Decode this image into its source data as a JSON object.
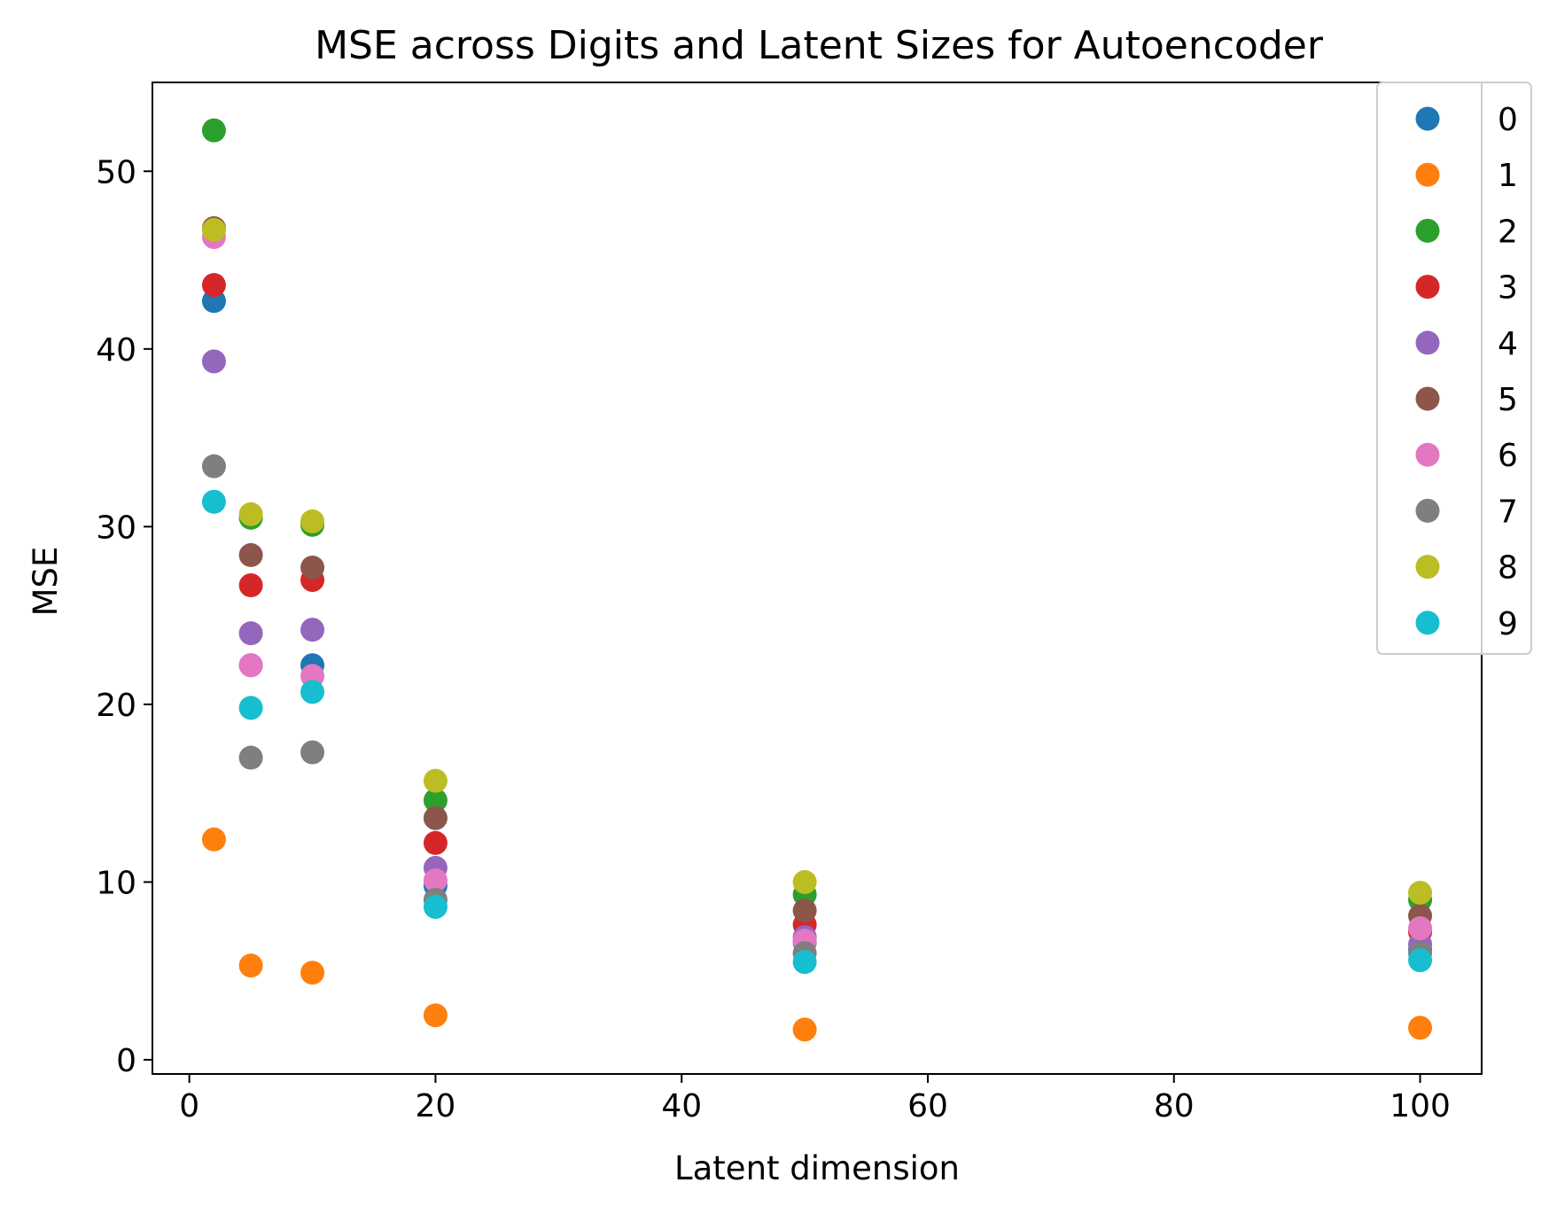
{
  "chart_data": {
    "type": "scatter",
    "title": "MSE across Digits and Latent Sizes for Autoencoder",
    "xlabel": "Latent dimension",
    "ylabel": "MSE",
    "xlim": [
      -3,
      105
    ],
    "ylim": [
      -0.8,
      55
    ],
    "xticks": [
      0,
      20,
      40,
      60,
      80,
      100
    ],
    "yticks": [
      0,
      10,
      20,
      30,
      40,
      50
    ],
    "grid": false,
    "legend_position": "upper-right",
    "x": [
      2,
      5,
      10,
      20,
      50,
      100
    ],
    "series": [
      {
        "name": "0",
        "color": "#1f77b4",
        "values": [
          42.7,
          22.2,
          22.2,
          9.8,
          6.6,
          6.2
        ]
      },
      {
        "name": "1",
        "color": "#ff7f0e",
        "values": [
          12.4,
          5.3,
          4.9,
          2.5,
          1.7,
          1.8
        ]
      },
      {
        "name": "2",
        "color": "#2ca02c",
        "values": [
          52.3,
          30.5,
          30.1,
          14.6,
          9.3,
          9.0
        ]
      },
      {
        "name": "3",
        "color": "#d62728",
        "values": [
          43.6,
          26.7,
          27.0,
          12.2,
          7.6,
          7.2
        ]
      },
      {
        "name": "4",
        "color": "#9467bd",
        "values": [
          39.3,
          24.0,
          24.2,
          10.8,
          6.9,
          6.5
        ]
      },
      {
        "name": "5",
        "color": "#8c564b",
        "values": [
          46.8,
          28.4,
          27.7,
          13.6,
          8.4,
          8.1
        ]
      },
      {
        "name": "6",
        "color": "#e377c2",
        "values": [
          46.3,
          22.2,
          21.6,
          10.1,
          6.7,
          7.4
        ]
      },
      {
        "name": "7",
        "color": "#7f7f7f",
        "values": [
          33.4,
          17.0,
          17.3,
          9.0,
          6.0,
          6.0
        ]
      },
      {
        "name": "8",
        "color": "#bcbd22",
        "values": [
          46.7,
          30.7,
          30.3,
          15.7,
          10.0,
          9.4
        ]
      },
      {
        "name": "9",
        "color": "#17becf",
        "values": [
          31.4,
          19.8,
          20.7,
          8.6,
          5.5,
          5.6
        ]
      }
    ]
  }
}
